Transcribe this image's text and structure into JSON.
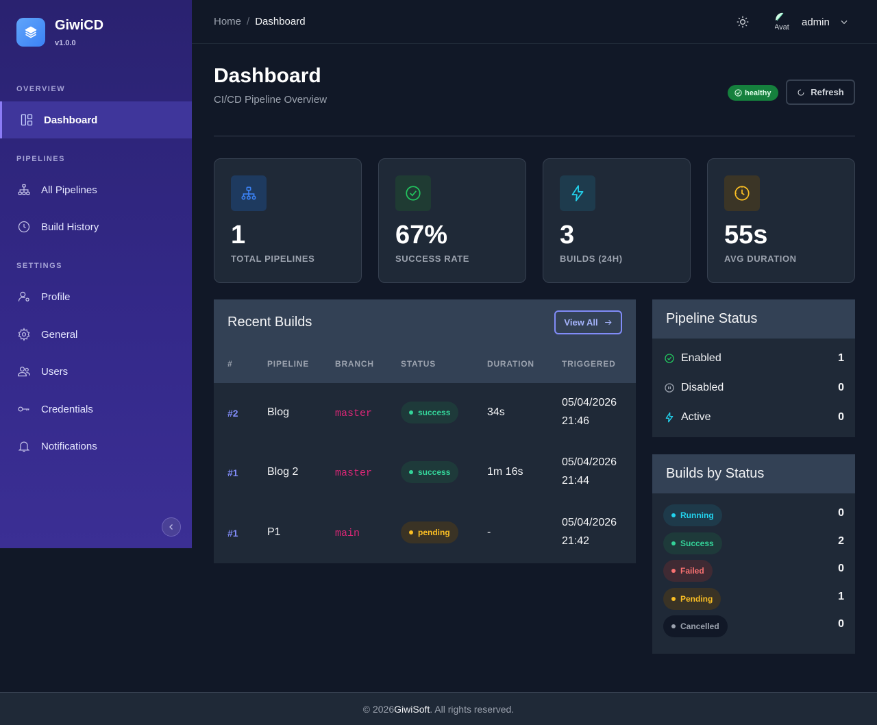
{
  "sidebar": {
    "brand_name": "GiwiCD",
    "version": "v1.0.0",
    "sections": {
      "overview": "OVERVIEW",
      "pipelines": "PIPELINES",
      "settings": "SETTINGS"
    },
    "items": {
      "dashboard": "Dashboard",
      "all_pipelines": "All Pipelines",
      "build_history": "Build History",
      "profile": "Profile",
      "general": "General",
      "users": "Users",
      "credentials": "Credentials",
      "notifications": "Notifications"
    }
  },
  "topbar": {
    "breadcrumb_home": "Home",
    "breadcrumb_sep": "/",
    "breadcrumb_current": "Dashboard",
    "avatar_alt": "Avat",
    "user_name": "admin"
  },
  "header": {
    "title": "Dashboard",
    "subtitle": "CI/CD Pipeline Overview",
    "health": "healthy",
    "refresh_label": "Refresh"
  },
  "stats": [
    {
      "value": "1",
      "label": "TOTAL PIPELINES",
      "icon": "sitemap-icon",
      "color": "#3b82f6"
    },
    {
      "value": "67%",
      "label": "SUCCESS RATE",
      "icon": "check-circle-icon",
      "color": "#22c55e"
    },
    {
      "value": "3",
      "label": "BUILDS (24H)",
      "icon": "lightning-icon",
      "color": "#22d3ee"
    },
    {
      "value": "55s",
      "label": "AVG DURATION",
      "icon": "clock-icon",
      "color": "#fbbf24"
    }
  ],
  "recent_builds": {
    "title": "Recent Builds",
    "view_all": "View All",
    "columns": [
      "#",
      "PIPELINE",
      "BRANCH",
      "STATUS",
      "DURATION",
      "TRIGGERED"
    ],
    "rows": [
      {
        "num": "#2",
        "pipeline": "Blog",
        "branch": "master",
        "status": "success",
        "duration": "34s",
        "date": "05/04/2026",
        "time": "21:46"
      },
      {
        "num": "#1",
        "pipeline": "Blog 2",
        "branch": "master",
        "status": "success",
        "duration": "1m 16s",
        "date": "05/04/2026",
        "time": "21:44"
      },
      {
        "num": "#1",
        "pipeline": "P1",
        "branch": "main",
        "status": "pending",
        "duration": "-",
        "date": "05/04/2026",
        "time": "21:42"
      }
    ]
  },
  "pipeline_status": {
    "title": "Pipeline Status",
    "items": [
      {
        "label": "Enabled",
        "count": "1"
      },
      {
        "label": "Disabled",
        "count": "0"
      },
      {
        "label": "Active",
        "count": "0"
      }
    ]
  },
  "builds_by_status": {
    "title": "Builds by Status",
    "items": [
      {
        "label": "Running",
        "count": "0"
      },
      {
        "label": "Success",
        "count": "2"
      },
      {
        "label": "Failed",
        "count": "0"
      },
      {
        "label": "Pending",
        "count": "1"
      },
      {
        "label": "Cancelled",
        "count": "0"
      }
    ]
  },
  "footer": {
    "prefix": "© 2026 ",
    "brand": "GiwiSoft",
    "suffix": ". All rights reserved."
  }
}
